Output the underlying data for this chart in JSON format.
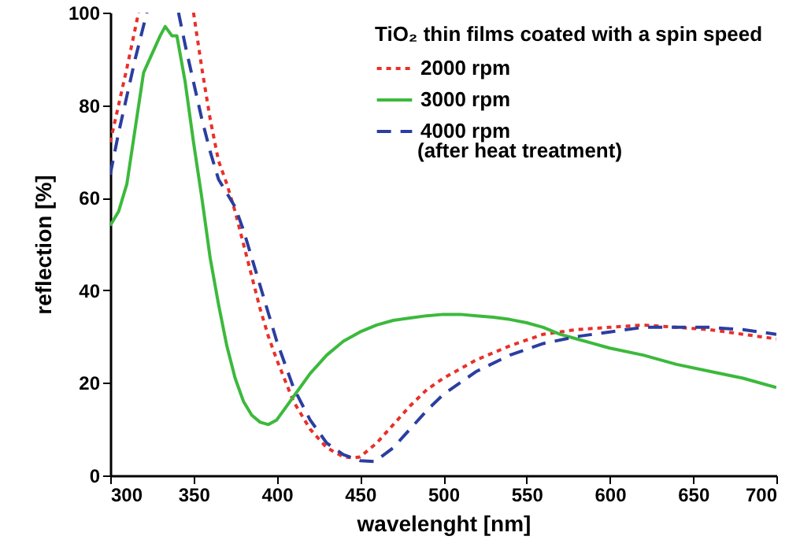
{
  "chart_data": {
    "type": "line",
    "xlabel": "wavelenght [nm]",
    "ylabel": "reflection [%]",
    "legend_title": "TiO₂ thin films coated with a spin speed",
    "legend": "top right",
    "grid": false,
    "xlim": [
      300,
      700
    ],
    "xticks": [
      300,
      350,
      400,
      450,
      500,
      550,
      600,
      650,
      700
    ],
    "ylim": [
      0,
      100
    ],
    "yticks": [
      0,
      20,
      40,
      60,
      80,
      100
    ],
    "annotations": [
      "(after heat treatment)"
    ],
    "series": [
      {
        "name": "2000 rpm",
        "color": "#e8302a",
        "line_style": "dotted",
        "x": [
          300,
          305,
          310,
          317,
          318,
          349,
          350,
          355,
          360,
          365,
          370,
          375,
          380,
          385,
          390,
          395,
          400,
          410,
          420,
          430,
          440,
          446,
          450,
          460,
          470,
          480,
          490,
          500,
          520,
          540,
          560,
          580,
          600,
          620,
          640,
          660,
          680,
          700
        ],
        "values": [
          72,
          80,
          88,
          100,
          null,
          null,
          100,
          88,
          77,
          68,
          63,
          57,
          50,
          43,
          36,
          30,
          25,
          16,
          10,
          6,
          4,
          3.8,
          4,
          7,
          11,
          15,
          18.5,
          21,
          25,
          28,
          30.5,
          31.5,
          32,
          32.5,
          32,
          31.5,
          30.5,
          29.5
        ]
      },
      {
        "name": "3000 rpm",
        "color": "#3cb93c",
        "line_style": "solid",
        "x": [
          300,
          305,
          310,
          315,
          320,
          325,
          330,
          333,
          337,
          340,
          345,
          350,
          355,
          360,
          365,
          370,
          375,
          380,
          385,
          390,
          395,
          400,
          410,
          420,
          430,
          440,
          450,
          460,
          470,
          480,
          490,
          500,
          510,
          520,
          530,
          540,
          550,
          560,
          570,
          580,
          590,
          600,
          620,
          640,
          660,
          680,
          700
        ],
        "values": [
          54,
          57,
          63,
          75,
          87,
          91,
          95,
          97,
          95,
          95,
          85,
          72,
          60,
          47,
          37,
          28,
          21,
          16,
          13,
          11.5,
          11,
          12,
          17,
          22,
          26,
          29,
          31,
          32.5,
          33.5,
          34,
          34.5,
          34.8,
          34.8,
          34.5,
          34.2,
          33.7,
          33,
          32,
          30.5,
          29.5,
          28.5,
          27.5,
          26,
          24,
          22.5,
          21,
          19
        ]
      },
      {
        "name": "4000 rpm",
        "color": "#2b3ea0",
        "line_style": "dashed",
        "x": [
          300,
          305,
          310,
          315,
          322,
          323,
          340,
          341,
          345,
          350,
          355,
          360,
          365,
          370,
          375,
          380,
          385,
          390,
          395,
          400,
          410,
          420,
          430,
          440,
          450,
          459,
          470,
          480,
          490,
          500,
          520,
          540,
          560,
          580,
          600,
          620,
          640,
          660,
          680,
          700
        ],
        "values": [
          65,
          74,
          82,
          90,
          100,
          null,
          null,
          100,
          93,
          85,
          77,
          70,
          64,
          61,
          58,
          53,
          47,
          41,
          35,
          29,
          19,
          12,
          7,
          4.5,
          3.2,
          3,
          6,
          10,
          14,
          17.5,
          22.5,
          26,
          28.5,
          30,
          31,
          32,
          32,
          32,
          31.5,
          30.5
        ]
      }
    ]
  }
}
